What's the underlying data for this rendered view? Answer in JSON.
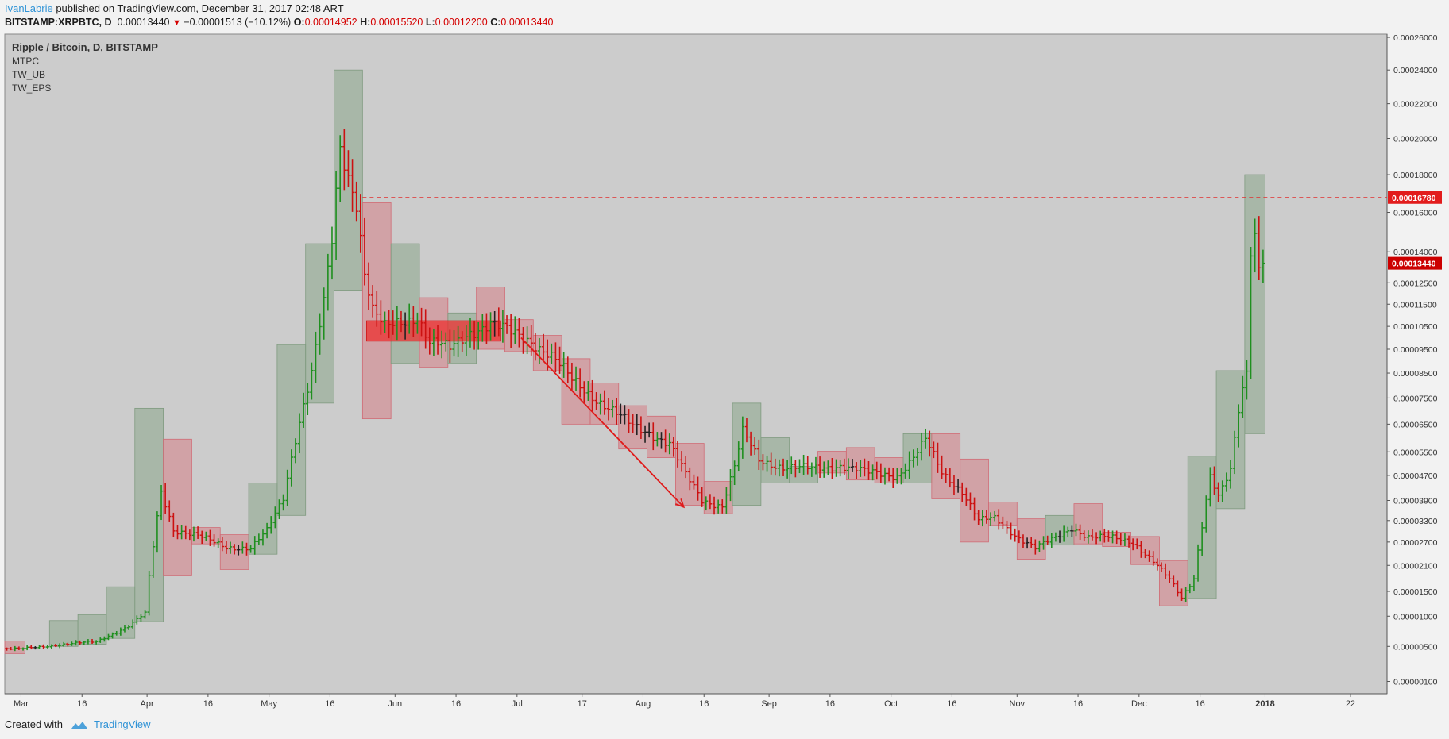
{
  "header": {
    "author": "IvanLabrie",
    "published": " published on TradingView.com, December 31, 2017 02:48 ART",
    "symbol": "BITSTAMP:XRPBTC, D",
    "last": "0.00013440",
    "change": "−0.00001513 (−10.12%)",
    "o_label": "O:",
    "o": "0.00014952",
    "h_label": "H:",
    "h": "0.00015520",
    "l_label": "L:",
    "l": "0.00012200",
    "c_label": "C:",
    "c": "0.00013440"
  },
  "legend": [
    "Ripple / Bitcoin, D, BITSTAMP",
    "MTPC",
    "TW_UB",
    "TW_EPS"
  ],
  "footer": {
    "created": "Created with",
    "brand": "TradingView"
  },
  "colors": {
    "background": "#cccccc",
    "up": "#1f8f1f",
    "down": "#cc1111",
    "up_box": "#8aa58a",
    "down_box": "#d67f86",
    "level_line": "#e03030",
    "tv_blue": "#3093d6"
  },
  "chart_data": {
    "type": "ohlc",
    "scale": "power",
    "ylim": [
      2.2e-07,
      0.000262
    ],
    "y_ticks": [
      "0.00026000",
      "0.00024000",
      "0.00022000",
      "0.00020000",
      "0.00018000",
      "0.00016000",
      "0.00014000",
      "0.00012500",
      "0.00011500",
      "0.00010500",
      "0.00009500",
      "0.00008500",
      "0.00007500",
      "0.00006500",
      "0.00005500",
      "0.00004700",
      "0.00003900",
      "0.00003300",
      "0.00002700",
      "0.00002100",
      "0.00001500",
      "0.00001000",
      "0.00000500",
      "0.00000100"
    ],
    "x_ticks": [
      "Mar",
      "16",
      "Apr",
      "16",
      "May",
      "16",
      "Jun",
      "16",
      "Jul",
      "17",
      "Aug",
      "16",
      "Sep",
      "16",
      "Oct",
      "16",
      "Nov",
      "16",
      "Dec",
      "16",
      "2018",
      "22"
    ],
    "x_range": [
      "2017-02-25",
      "2018-01-31"
    ],
    "x_tick_dates": [
      "2017-03-01",
      "2017-03-16",
      "2017-04-01",
      "2017-04-16",
      "2017-05-01",
      "2017-05-16",
      "2017-06-01",
      "2017-06-16",
      "2017-07-01",
      "2017-07-17",
      "2017-08-01",
      "2017-08-16",
      "2017-09-01",
      "2017-09-16",
      "2017-10-01",
      "2017-10-16",
      "2017-11-01",
      "2017-11-16",
      "2017-12-01",
      "2017-12-16",
      "2018-01-01",
      "2018-01-22"
    ],
    "price_labels": [
      {
        "value": 0.0001678,
        "label": "0.00016780",
        "color": "#e21c1c"
      },
      {
        "value": 0.0001344,
        "label": "0.00013440",
        "color": "#cc0000"
      }
    ],
    "horizontal_level": 0.0001678,
    "zone": {
      "start": "2017-05-25",
      "end": "2017-06-27",
      "low": 9.85e-05,
      "high": 0.0001075
    },
    "arrow": {
      "start_date": "2017-07-02",
      "start": 0.0001,
      "end_date": "2017-08-11",
      "end": 3.7e-05
    },
    "boxes": [
      {
        "start": "2017-02-25",
        "end": "2017-03-01",
        "low": 4e-06,
        "high": 5.8e-06,
        "dir": "down"
      },
      {
        "start": "2017-03-08",
        "end": "2017-03-14",
        "low": 5e-06,
        "high": 9.2e-06,
        "dir": "up"
      },
      {
        "start": "2017-03-15",
        "end": "2017-03-21",
        "low": 5.3e-06,
        "high": 1.03e-05,
        "dir": "up"
      },
      {
        "start": "2017-03-22",
        "end": "2017-03-28",
        "low": 6.2e-06,
        "high": 1.6e-05,
        "dir": "up"
      },
      {
        "start": "2017-03-29",
        "end": "2017-04-04",
        "low": 9e-06,
        "high": 7.1e-05,
        "dir": "up"
      },
      {
        "start": "2017-04-05",
        "end": "2017-04-11",
        "low": 1.85e-05,
        "high": 5.95e-05,
        "dir": "down"
      },
      {
        "start": "2017-04-12",
        "end": "2017-04-18",
        "low": 2.65e-05,
        "high": 3.1e-05,
        "dir": "down"
      },
      {
        "start": "2017-04-19",
        "end": "2017-04-25",
        "low": 2e-05,
        "high": 2.9e-05,
        "dir": "down"
      },
      {
        "start": "2017-04-26",
        "end": "2017-05-02",
        "low": 2.38e-05,
        "high": 4.45e-05,
        "dir": "up"
      },
      {
        "start": "2017-05-03",
        "end": "2017-05-09",
        "low": 3.45e-05,
        "high": 9.7e-05,
        "dir": "up"
      },
      {
        "start": "2017-05-10",
        "end": "2017-05-16",
        "low": 7.3e-05,
        "high": 0.000144,
        "dir": "up"
      },
      {
        "start": "2017-05-17",
        "end": "2017-05-23",
        "low": 0.0001215,
        "high": 0.00024,
        "dir": "up"
      },
      {
        "start": "2017-05-24",
        "end": "2017-05-30",
        "low": 6.7e-05,
        "high": 0.000165,
        "dir": "down"
      },
      {
        "start": "2017-05-31",
        "end": "2017-06-06",
        "low": 8.9e-05,
        "high": 0.000144,
        "dir": "up"
      },
      {
        "start": "2017-06-07",
        "end": "2017-06-13",
        "low": 8.75e-05,
        "high": 0.000118,
        "dir": "down"
      },
      {
        "start": "2017-06-14",
        "end": "2017-06-20",
        "low": 8.9e-05,
        "high": 0.000111,
        "dir": "up"
      },
      {
        "start": "2017-06-21",
        "end": "2017-06-27",
        "low": 9.5e-05,
        "high": 0.000123,
        "dir": "down"
      },
      {
        "start": "2017-06-28",
        "end": "2017-07-04",
        "low": 9.4e-05,
        "high": 0.000108,
        "dir": "down"
      },
      {
        "start": "2017-07-05",
        "end": "2017-07-11",
        "low": 8.6e-05,
        "high": 0.000101,
        "dir": "down"
      },
      {
        "start": "2017-07-12",
        "end": "2017-07-18",
        "low": 6.5e-05,
        "high": 9.1e-05,
        "dir": "down"
      },
      {
        "start": "2017-07-19",
        "end": "2017-07-25",
        "low": 6.5e-05,
        "high": 8.1e-05,
        "dir": "down"
      },
      {
        "start": "2017-07-26",
        "end": "2017-08-01",
        "low": 5.6e-05,
        "high": 7.2e-05,
        "dir": "down"
      },
      {
        "start": "2017-08-02",
        "end": "2017-08-08",
        "low": 5.3e-05,
        "high": 6.8e-05,
        "dir": "down"
      },
      {
        "start": "2017-08-09",
        "end": "2017-08-15",
        "low": 3.75e-05,
        "high": 5.8e-05,
        "dir": "down"
      },
      {
        "start": "2017-08-16",
        "end": "2017-08-22",
        "low": 3.5e-05,
        "high": 4.5e-05,
        "dir": "down"
      },
      {
        "start": "2017-08-23",
        "end": "2017-08-29",
        "low": 3.75e-05,
        "high": 7.3e-05,
        "dir": "up"
      },
      {
        "start": "2017-08-30",
        "end": "2017-09-05",
        "low": 4.45e-05,
        "high": 6e-05,
        "dir": "up"
      },
      {
        "start": "2017-09-06",
        "end": "2017-09-12",
        "low": 4.45e-05,
        "high": 5e-05,
        "dir": "up"
      },
      {
        "start": "2017-09-13",
        "end": "2017-09-19",
        "low": 4.78e-05,
        "high": 5.52e-05,
        "dir": "down"
      },
      {
        "start": "2017-09-20",
        "end": "2017-09-26",
        "low": 4.55e-05,
        "high": 5.65e-05,
        "dir": "down"
      },
      {
        "start": "2017-09-27",
        "end": "2017-10-03",
        "low": 4.45e-05,
        "high": 5.3e-05,
        "dir": "down"
      },
      {
        "start": "2017-10-04",
        "end": "2017-10-10",
        "low": 4.45e-05,
        "high": 6.15e-05,
        "dir": "up"
      },
      {
        "start": "2017-10-11",
        "end": "2017-10-17",
        "low": 3.95e-05,
        "high": 6.15e-05,
        "dir": "down"
      },
      {
        "start": "2017-10-18",
        "end": "2017-10-24",
        "low": 2.7e-05,
        "high": 5.25e-05,
        "dir": "down"
      },
      {
        "start": "2017-10-25",
        "end": "2017-10-31",
        "low": 3.15e-05,
        "high": 3.85e-05,
        "dir": "down"
      },
      {
        "start": "2017-11-01",
        "end": "2017-11-07",
        "low": 2.25e-05,
        "high": 3.35e-05,
        "dir": "down"
      },
      {
        "start": "2017-11-08",
        "end": "2017-11-14",
        "low": 2.62e-05,
        "high": 3.45e-05,
        "dir": "up"
      },
      {
        "start": "2017-11-15",
        "end": "2017-11-21",
        "low": 2.65e-05,
        "high": 3.8e-05,
        "dir": "down"
      },
      {
        "start": "2017-11-22",
        "end": "2017-11-28",
        "low": 2.58e-05,
        "high": 2.97e-05,
        "dir": "down"
      },
      {
        "start": "2017-11-29",
        "end": "2017-12-05",
        "low": 2.12e-05,
        "high": 2.85e-05,
        "dir": "down"
      },
      {
        "start": "2017-12-06",
        "end": "2017-12-12",
        "low": 1.2e-05,
        "high": 2.22e-05,
        "dir": "down"
      },
      {
        "start": "2017-12-13",
        "end": "2017-12-19",
        "low": 1.35e-05,
        "high": 5.35e-05,
        "dir": "up"
      },
      {
        "start": "2017-12-20",
        "end": "2017-12-26",
        "low": 3.65e-05,
        "high": 8.6e-05,
        "dir": "up"
      },
      {
        "start": "2017-12-27",
        "end": "2017-12-31",
        "low": 6.15e-05,
        "high": 0.00018,
        "dir": "up"
      }
    ],
    "anchors": [
      [
        "2017-02-25",
        4.7e-06
      ],
      [
        "2017-03-01",
        4.6e-06
      ],
      [
        "2017-03-10",
        5.2e-06
      ],
      [
        "2017-03-20",
        5.7e-06
      ],
      [
        "2017-03-28",
        8.2e-06
      ],
      [
        "2017-04-01",
        1.05e-05
      ],
      [
        "2017-04-03",
        2.6e-05
      ],
      [
        "2017-04-05",
        4.2e-05
      ],
      [
        "2017-04-08",
        3.05e-05
      ],
      [
        "2017-04-14",
        2.85e-05
      ],
      [
        "2017-04-21",
        2.58e-05
      ],
      [
        "2017-04-27",
        2.52e-05
      ],
      [
        "2017-05-01",
        3e-05
      ],
      [
        "2017-05-05",
        4e-05
      ],
      [
        "2017-05-08",
        6e-05
      ],
      [
        "2017-05-12",
        8.5e-05
      ],
      [
        "2017-05-15",
        0.000115
      ],
      [
        "2017-05-17",
        0.000145
      ],
      [
        "2017-05-19",
        0.000195
      ],
      [
        "2017-05-21",
        0.00018
      ],
      [
        "2017-05-23",
        0.000166
      ],
      [
        "2017-05-25",
        0.00013
      ],
      [
        "2017-05-27",
        0.000112
      ],
      [
        "2017-05-30",
        0.000104
      ],
      [
        "2017-06-03",
        0.000107
      ],
      [
        "2017-06-07",
        0.00011
      ],
      [
        "2017-06-10",
        9.8e-05
      ],
      [
        "2017-06-15",
        9.5e-05
      ],
      [
        "2017-06-20",
        0.000103
      ],
      [
        "2017-06-25",
        0.000106
      ],
      [
        "2017-06-30",
        0.000102
      ],
      [
        "2017-07-05",
        9.9e-05
      ],
      [
        "2017-07-10",
        9.2e-05
      ],
      [
        "2017-07-15",
        8.2e-05
      ],
      [
        "2017-07-20",
        7.6e-05
      ],
      [
        "2017-07-25",
        7e-05
      ],
      [
        "2017-07-30",
        6.4e-05
      ],
      [
        "2017-08-03",
        6.2e-05
      ],
      [
        "2017-08-08",
        5.8e-05
      ],
      [
        "2017-08-12",
        4.7e-05
      ],
      [
        "2017-08-16",
        3.9e-05
      ],
      [
        "2017-08-21",
        3.75e-05
      ],
      [
        "2017-08-24",
        5e-05
      ],
      [
        "2017-08-26",
        6.2e-05
      ],
      [
        "2017-08-30",
        5.2e-05
      ],
      [
        "2017-09-05",
        5e-05
      ],
      [
        "2017-09-12",
        4.9e-05
      ],
      [
        "2017-09-19",
        5.05e-05
      ],
      [
        "2017-09-26",
        4.78e-05
      ],
      [
        "2017-10-03",
        4.7e-05
      ],
      [
        "2017-10-07",
        5.3e-05
      ],
      [
        "2017-10-10",
        5.9e-05
      ],
      [
        "2017-10-14",
        4.8e-05
      ],
      [
        "2017-10-19",
        4.2e-05
      ],
      [
        "2017-10-23",
        3.3e-05
      ],
      [
        "2017-10-27",
        3.35e-05
      ],
      [
        "2017-11-01",
        2.9e-05
      ],
      [
        "2017-11-06",
        2.55e-05
      ],
      [
        "2017-11-11",
        2.8e-05
      ],
      [
        "2017-11-15",
        3.1e-05
      ],
      [
        "2017-11-19",
        2.85e-05
      ],
      [
        "2017-11-25",
        2.8e-05
      ],
      [
        "2017-11-30",
        2.7e-05
      ],
      [
        "2017-12-05",
        2.2e-05
      ],
      [
        "2017-12-09",
        1.75e-05
      ],
      [
        "2017-12-12",
        1.35e-05
      ],
      [
        "2017-12-15",
        1.8e-05
      ],
      [
        "2017-12-17",
        3.2e-05
      ],
      [
        "2017-12-19",
        4.7e-05
      ],
      [
        "2017-12-21",
        4e-05
      ],
      [
        "2017-12-24",
        4.8e-05
      ],
      [
        "2017-12-26",
        7e-05
      ],
      [
        "2017-12-28",
        8.6e-05
      ],
      [
        "2017-12-29",
        0.000142
      ],
      [
        "2017-12-30",
        0.0001495
      ],
      [
        "2017-12-31",
        0.0001344
      ]
    ]
  }
}
